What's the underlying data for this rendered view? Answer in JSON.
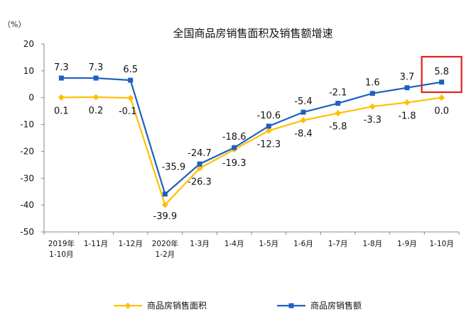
{
  "chart_data": {
    "type": "line",
    "title": "全国商品房销售面积及销售额增速",
    "unit_label": "（%）",
    "ylim": [
      -50,
      20
    ],
    "yticks": [
      20,
      10,
      0,
      -10,
      -20,
      -30,
      -40,
      -50
    ],
    "grid": false,
    "legend_position": "bottom",
    "categories": [
      [
        "2019年",
        "1-10月"
      ],
      [
        "1-11月"
      ],
      [
        "1-12月"
      ],
      [
        "2020年",
        "1-2月"
      ],
      [
        "1-3月"
      ],
      [
        "1-4月"
      ],
      [
        "1-5月"
      ],
      [
        "1-6月"
      ],
      [
        "1-7月"
      ],
      [
        "1-8月"
      ],
      [
        "1-9月"
      ],
      [
        "1-10月"
      ]
    ],
    "series": [
      {
        "name": "商品房销售面积",
        "color": "#FFC000",
        "marker": "diamond",
        "values": [
          0.1,
          0.2,
          -0.1,
          -39.9,
          -26.3,
          -19.3,
          -12.3,
          -8.4,
          -5.8,
          -3.3,
          -1.8,
          0.0
        ],
        "labels": [
          "0.1",
          "0.2",
          "-0.1",
          "-39.9",
          "-26.3",
          "-19.3",
          "-12.3",
          "-8.4",
          "-5.8",
          "-3.3",
          "-1.8",
          "0.0"
        ]
      },
      {
        "name": "商品房销售额",
        "color": "#1F5FC0",
        "marker": "square",
        "values": [
          7.3,
          7.3,
          6.5,
          -35.9,
          -24.7,
          -18.6,
          -10.6,
          -5.4,
          -2.1,
          1.6,
          3.7,
          5.8
        ],
        "labels": [
          "7.3",
          "7.3",
          "6.5",
          "-35.9",
          "-24.7",
          "-18.6",
          "-10.6",
          "-5.4",
          "-2.1",
          "1.6",
          "3.7",
          "5.8"
        ]
      }
    ],
    "highlight": {
      "category_index": 11,
      "color": "#E02020"
    }
  }
}
